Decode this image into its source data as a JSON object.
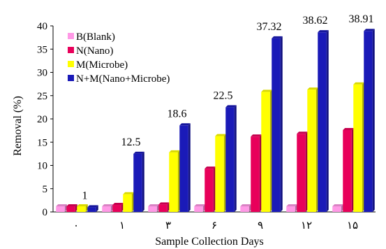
{
  "chart_data": {
    "type": "bar",
    "title": "",
    "xlabel": "Sample Collection Days",
    "ylabel": "Removal (%)",
    "categories": [
      "۰",
      "۱",
      "۳",
      "۶",
      "۹",
      "۱۲",
      "۱۵"
    ],
    "ylim": [
      0,
      40
    ],
    "yticks": [
      0,
      5,
      10,
      15,
      20,
      25,
      30,
      35,
      40
    ],
    "grid": false,
    "legend_position": "top-left",
    "series": [
      {
        "name": "B(Blank)",
        "color": "#ff99e6",
        "values": [
          1.2,
          1.2,
          1.2,
          1.2,
          1.2,
          1.2,
          1.2
        ]
      },
      {
        "name": "N(Nano)",
        "color": "#e8005a",
        "values": [
          1.2,
          1.5,
          1.6,
          9.3,
          16.2,
          16.8,
          17.6
        ]
      },
      {
        "name": "M(Microbe)",
        "color": "#ffff00",
        "values": [
          1.2,
          3.8,
          12.8,
          16.3,
          25.8,
          26.3,
          27.4
        ]
      },
      {
        "name": "N+M(Nano+Microbe)",
        "color": "#1a1ab8",
        "values": [
          1,
          12.5,
          18.6,
          22.5,
          37.32,
          38.62,
          38.91
        ]
      }
    ],
    "data_labels": [
      "1",
      "12.5",
      "18.6",
      "22.5",
      "37.32",
      "38.62",
      "38.91"
    ]
  }
}
